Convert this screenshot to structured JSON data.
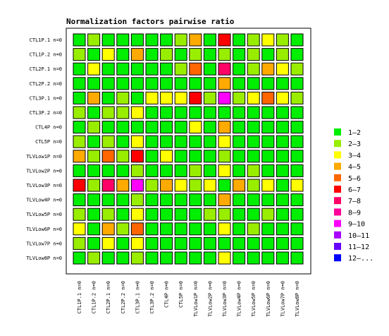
{
  "chart_data": {
    "type": "heatmap",
    "title": "Normalization factors pairwise ratio",
    "rows": [
      "CTL1P.1 n=0",
      "CTL1P.2 n=0",
      "CTL2P.1 n=0",
      "CTL2P.2 n=0",
      "CTL3P.1 n=0",
      "CTL3P.2 n=0",
      "CTL4P n=0",
      "CTL5P n=0",
      "TLVLow1P n=0",
      "TLVLow2P n=0",
      "TLVLow3P n=0",
      "TLVLow4P n=0",
      "TLVLow5P n=0",
      "TLVLow6P n=0",
      "TLVLow7P n=0",
      "TLVLow8P n=0"
    ],
    "columns": [
      "CTL1P.1 n=0",
      "CTL1P.2 n=0",
      "CTL2P.1 n=0",
      "CTL2P.2 n=0",
      "CTL3P.1 n=0",
      "CTL3P.2 n=0",
      "CTL4P n=0",
      "CTL5P n=0",
      "TLVLow1P n=0",
      "TLVLow2P n=0",
      "TLVLow3P n=0",
      "TLVLow4P n=0",
      "TLVLow5P n=0",
      "TLVLow6P n=0",
      "TLVLow7P n=0",
      "TLVLow8P n=0"
    ],
    "legend": [
      {
        "label": "1–2",
        "color": "#00ee00"
      },
      {
        "label": "2–3",
        "color": "#99ee00"
      },
      {
        "label": "3–4",
        "color": "#ffff00"
      },
      {
        "label": "4–5",
        "color": "#ffaa00"
      },
      {
        "label": "5–6",
        "color": "#ff6600"
      },
      {
        "label": "6–7",
        "color": "#ff0000"
      },
      {
        "label": "7–8",
        "color": "#ff0066"
      },
      {
        "label": "8–9",
        "color": "#ff0099"
      },
      {
        "label": "9–10",
        "color": "#ff00ff"
      },
      {
        "label": "10–11",
        "color": "#aa00ff"
      },
      {
        "label": "11–12",
        "color": "#6600ff"
      },
      {
        "label": "12–...",
        "color": "#0000ff"
      }
    ],
    "legend_position": "right",
    "cells": [
      [
        0,
        1,
        0,
        0,
        0,
        0,
        0,
        1,
        3,
        0,
        5,
        0,
        1,
        2,
        1,
        0
      ],
      [
        1,
        0,
        2,
        0,
        3,
        0,
        1,
        0,
        1,
        0,
        1,
        0,
        1,
        0,
        1,
        0
      ],
      [
        0,
        2,
        0,
        0,
        0,
        0,
        0,
        1,
        4,
        0,
        6,
        0,
        1,
        3,
        2,
        1
      ],
      [
        0,
        0,
        0,
        0,
        0,
        0,
        0,
        0,
        0,
        0,
        3,
        0,
        0,
        0,
        0,
        0
      ],
      [
        0,
        3,
        0,
        1,
        0,
        2,
        2,
        2,
        5,
        1,
        8,
        1,
        2,
        4,
        2,
        1
      ],
      [
        1,
        0,
        1,
        1,
        2,
        0,
        0,
        0,
        0,
        0,
        0,
        0,
        0,
        0,
        0,
        0
      ],
      [
        0,
        1,
        0,
        0,
        0,
        0,
        0,
        0,
        2,
        0,
        3,
        0,
        0,
        0,
        0,
        0
      ],
      [
        1,
        0,
        1,
        0,
        2,
        0,
        0,
        0,
        0,
        0,
        2,
        0,
        0,
        0,
        0,
        0
      ],
      [
        3,
        1,
        4,
        1,
        5,
        0,
        2,
        0,
        0,
        0,
        1,
        0,
        0,
        0,
        0,
        0
      ],
      [
        0,
        0,
        0,
        0,
        1,
        0,
        0,
        0,
        1,
        0,
        2,
        0,
        1,
        0,
        0,
        0
      ],
      [
        5,
        1,
        6,
        3,
        8,
        1,
        3,
        2,
        1,
        2,
        0,
        3,
        1,
        2,
        0,
        2
      ],
      [
        0,
        0,
        0,
        0,
        1,
        0,
        0,
        0,
        0,
        0,
        3,
        0,
        0,
        0,
        0,
        0
      ],
      [
        1,
        0,
        1,
        0,
        2,
        0,
        0,
        0,
        0,
        1,
        1,
        0,
        0,
        1,
        0,
        0
      ],
      [
        2,
        0,
        3,
        1,
        4,
        0,
        0,
        0,
        0,
        0,
        2,
        0,
        1,
        0,
        0,
        0
      ],
      [
        1,
        0,
        2,
        0,
        2,
        0,
        0,
        0,
        0,
        0,
        0,
        0,
        0,
        0,
        0,
        0
      ],
      [
        0,
        1,
        0,
        0,
        1,
        0,
        0,
        0,
        0,
        0,
        2,
        0,
        0,
        0,
        0,
        0
      ]
    ]
  }
}
